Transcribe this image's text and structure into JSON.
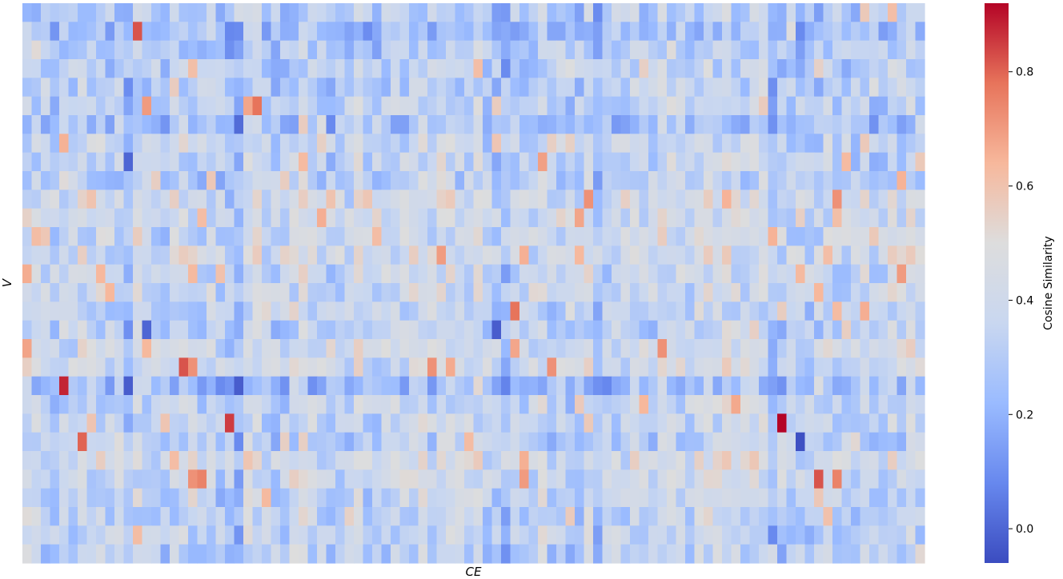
{
  "chart_data": {
    "type": "heatmap",
    "title": "",
    "xlabel": "CE",
    "ylabel": "V",
    "n_rows": 30,
    "n_cols": 98,
    "value_range": [
      -0.06,
      0.92
    ],
    "seed": 1337,
    "base_value": 0.3,
    "colorbar": {
      "label": "Cosine Similarity",
      "ticks": [
        0.0,
        0.2,
        0.4,
        0.6,
        0.8
      ],
      "tick_labels": [
        "0.0",
        "0.2",
        "0.4",
        "0.6",
        "0.8"
      ]
    },
    "colormap": [
      "#3b4cc0",
      "#6788ee",
      "#9abbff",
      "#c9d7f0",
      "#dddddd",
      "#f7b89c",
      "#e7745b",
      "#b40426"
    ],
    "row_bias": [
      0.0,
      -0.05,
      0.0,
      0.02,
      0.03,
      0.03,
      -0.04,
      0.05,
      0.05,
      0.03,
      0.1,
      0.1,
      0.08,
      0.1,
      0.07,
      0.08,
      0.05,
      0.03,
      0.1,
      0.1,
      -0.06,
      0.05,
      0.05,
      0.02,
      0.12,
      0.08,
      0.05,
      0.05,
      0.05,
      0.03
    ],
    "dark_cols": [
      11,
      15,
      22,
      23,
      51,
      52,
      54,
      62,
      81,
      82,
      86
    ],
    "hot_cells": [
      {
        "r": 1,
        "c": 12,
        "v": 0.82
      },
      {
        "r": 5,
        "c": 13,
        "v": 0.7
      },
      {
        "r": 5,
        "c": 25,
        "v": 0.78
      },
      {
        "r": 9,
        "c": 95,
        "v": 0.65
      },
      {
        "r": 11,
        "c": 60,
        "v": 0.68
      },
      {
        "r": 12,
        "c": 81,
        "v": 0.65
      },
      {
        "r": 14,
        "c": 95,
        "v": 0.7
      },
      {
        "r": 16,
        "c": 53,
        "v": 0.78
      },
      {
        "r": 19,
        "c": 17,
        "v": 0.82
      },
      {
        "r": 19,
        "c": 18,
        "v": 0.72
      },
      {
        "r": 20,
        "c": 4,
        "v": 0.88
      },
      {
        "r": 22,
        "c": 22,
        "v": 0.85
      },
      {
        "r": 22,
        "c": 82,
        "v": 0.92
      },
      {
        "r": 23,
        "c": 6,
        "v": 0.8
      },
      {
        "r": 25,
        "c": 18,
        "v": 0.72
      },
      {
        "r": 25,
        "c": 19,
        "v": 0.75
      },
      {
        "r": 25,
        "c": 86,
        "v": 0.82
      },
      {
        "r": 25,
        "c": 88,
        "v": 0.75
      },
      {
        "r": 25,
        "c": 54,
        "v": 0.7
      },
      {
        "r": 10,
        "c": 61,
        "v": 0.72
      },
      {
        "r": 10,
        "c": 88,
        "v": 0.72
      },
      {
        "r": 11,
        "c": 32,
        "v": 0.66
      },
      {
        "r": 19,
        "c": 44,
        "v": 0.72
      },
      {
        "r": 19,
        "c": 57,
        "v": 0.72
      }
    ],
    "cold_cells": [
      {
        "r": 23,
        "c": 84,
        "v": -0.05
      },
      {
        "r": 20,
        "c": 11,
        "v": -0.02
      },
      {
        "r": 8,
        "c": 11,
        "v": 0.0
      },
      {
        "r": 17,
        "c": 13,
        "v": 0.0
      },
      {
        "r": 17,
        "c": 51,
        "v": -0.02
      },
      {
        "r": 20,
        "c": 23,
        "v": -0.02
      }
    ]
  }
}
